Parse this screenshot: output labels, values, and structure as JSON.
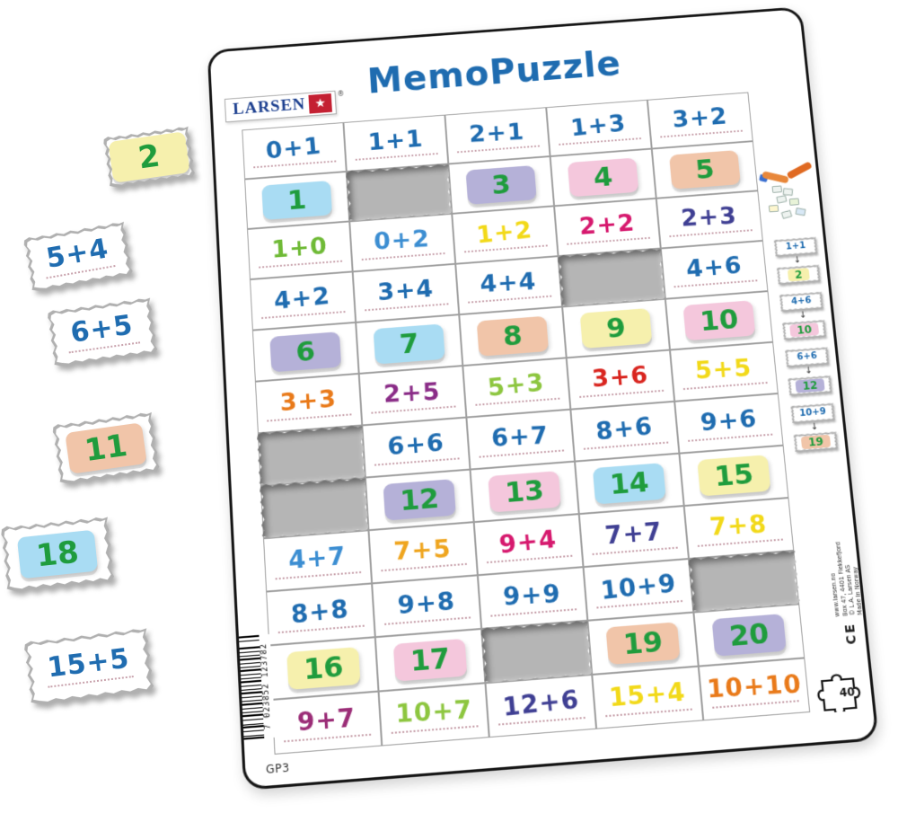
{
  "title": "MemoPuzzle",
  "brand": {
    "name": "LARSEN",
    "reg": "®"
  },
  "footer": {
    "product_code": "GP3",
    "piece_count": "40",
    "barcode_number": "7 023852 123782"
  },
  "side_text": {
    "lines": [
      "www.larsen.no",
      "Box 47, 4401 Flekkefjord",
      "© L.A. Larsen AS",
      "Made in Norway"
    ],
    "ce": "CE"
  },
  "palette": {
    "blue": "#1f6cb0",
    "blue2": "#3c8ed2",
    "green": "#6fba36",
    "lightgreen": "#8dc63f",
    "yellow": "#f2d919",
    "gold": "#efa51f",
    "crimson": "#d6196e",
    "indigo": "#3f3f93",
    "purple": "#8a2c87",
    "magenta": "#9b2d77",
    "red": "#d9251f",
    "orange": "#e97a1a",
    "ansGreen": "#1f9c3d",
    "bgBlue": "#a9dcf3",
    "bgLavender": "#b5b1d8",
    "bgPink": "#f4c7dc",
    "bgPeach": "#f1c5a9",
    "bgYellow": "#f6f0ad"
  },
  "grid": {
    "cols": 5,
    "rows": [
      [
        {
          "t": "p",
          "v": "0+1",
          "c": "blue"
        },
        {
          "t": "p",
          "v": "1+1",
          "c": "blue"
        },
        {
          "t": "p",
          "v": "2+1",
          "c": "blue"
        },
        {
          "t": "p",
          "v": "1+3",
          "c": "blue"
        },
        {
          "t": "p",
          "v": "3+2",
          "c": "blue"
        }
      ],
      [
        {
          "t": "a",
          "v": "1",
          "bg": "bgBlue"
        },
        {
          "t": "h"
        },
        {
          "t": "a",
          "v": "3",
          "bg": "bgLavender"
        },
        {
          "t": "a",
          "v": "4",
          "bg": "bgPink"
        },
        {
          "t": "a",
          "v": "5",
          "bg": "bgPeach"
        }
      ],
      [
        {
          "t": "p",
          "v": "1+0",
          "c": "green"
        },
        {
          "t": "p",
          "v": "0+2",
          "c": "blue2"
        },
        {
          "t": "p",
          "v": "1+2",
          "c": "yellow"
        },
        {
          "t": "p",
          "v": "2+2",
          "c": "crimson"
        },
        {
          "t": "p",
          "v": "2+3",
          "c": "indigo"
        }
      ],
      [
        {
          "t": "p",
          "v": "4+2",
          "c": "blue"
        },
        {
          "t": "p",
          "v": "3+4",
          "c": "blue"
        },
        {
          "t": "p",
          "v": "4+4",
          "c": "blue"
        },
        {
          "t": "h"
        },
        {
          "t": "p",
          "v": "4+6",
          "c": "blue"
        }
      ],
      [
        {
          "t": "a",
          "v": "6",
          "bg": "bgLavender"
        },
        {
          "t": "a",
          "v": "7",
          "bg": "bgBlue"
        },
        {
          "t": "a",
          "v": "8",
          "bg": "bgPeach"
        },
        {
          "t": "a",
          "v": "9",
          "bg": "bgYellow"
        },
        {
          "t": "a",
          "v": "10",
          "bg": "bgPink"
        }
      ],
      [
        {
          "t": "p",
          "v": "3+3",
          "c": "orange"
        },
        {
          "t": "p",
          "v": "2+5",
          "c": "purple"
        },
        {
          "t": "p",
          "v": "5+3",
          "c": "lightgreen"
        },
        {
          "t": "p",
          "v": "3+6",
          "c": "red"
        },
        {
          "t": "p",
          "v": "5+5",
          "c": "yellow"
        }
      ],
      [
        {
          "t": "h"
        },
        {
          "t": "p",
          "v": "6+6",
          "c": "blue"
        },
        {
          "t": "p",
          "v": "6+7",
          "c": "blue"
        },
        {
          "t": "p",
          "v": "8+6",
          "c": "blue"
        },
        {
          "t": "p",
          "v": "9+6",
          "c": "blue"
        }
      ],
      [
        {
          "t": "h"
        },
        {
          "t": "a",
          "v": "12",
          "bg": "bgLavender"
        },
        {
          "t": "a",
          "v": "13",
          "bg": "bgPink"
        },
        {
          "t": "a",
          "v": "14",
          "bg": "bgBlue"
        },
        {
          "t": "a",
          "v": "15",
          "bg": "bgYellow"
        }
      ],
      [
        {
          "t": "p",
          "v": "4+7",
          "c": "blue2"
        },
        {
          "t": "p",
          "v": "7+5",
          "c": "gold"
        },
        {
          "t": "p",
          "v": "9+4",
          "c": "crimson"
        },
        {
          "t": "p",
          "v": "7+7",
          "c": "indigo"
        },
        {
          "t": "p",
          "v": "7+8",
          "c": "yellow"
        }
      ],
      [
        {
          "t": "p",
          "v": "8+8",
          "c": "blue"
        },
        {
          "t": "p",
          "v": "9+8",
          "c": "blue"
        },
        {
          "t": "p",
          "v": "9+9",
          "c": "blue"
        },
        {
          "t": "p",
          "v": "10+9",
          "c": "blue"
        },
        {
          "t": "h"
        }
      ],
      [
        {
          "t": "a",
          "v": "16",
          "bg": "bgYellow"
        },
        {
          "t": "a",
          "v": "17",
          "bg": "bgPink"
        },
        {
          "t": "h"
        },
        {
          "t": "a",
          "v": "19",
          "bg": "bgPeach"
        },
        {
          "t": "a",
          "v": "20",
          "bg": "bgLavender"
        }
      ],
      [
        {
          "t": "p",
          "v": "9+7",
          "c": "magenta"
        },
        {
          "t": "p",
          "v": "10+7",
          "c": "lightgreen"
        },
        {
          "t": "p",
          "v": "12+6",
          "c": "indigo"
        },
        {
          "t": "p",
          "v": "15+4",
          "c": "yellow"
        },
        {
          "t": "p",
          "v": "10+10",
          "c": "orange"
        }
      ]
    ]
  },
  "examples": [
    {
      "problem": "1+1",
      "answer": "2",
      "bg": "bgYellow"
    },
    {
      "problem": "4+6",
      "answer": "10",
      "bg": "bgPink"
    },
    {
      "problem": "6+6",
      "answer": "12",
      "bg": "bgLavender"
    },
    {
      "problem": "10+9",
      "answer": "19",
      "bg": "bgPeach"
    }
  ],
  "loose_pieces": [
    {
      "type": "answer",
      "text": "2",
      "bg": "bgYellow"
    },
    {
      "type": "problem",
      "text": "5+4",
      "color": "blue"
    },
    {
      "type": "problem",
      "text": "6+5",
      "color": "blue"
    },
    {
      "type": "answer",
      "text": "11",
      "bg": "bgPeach"
    },
    {
      "type": "answer",
      "text": "18",
      "bg": "bgBlue"
    },
    {
      "type": "problem",
      "text": "15+5",
      "color": "blue"
    }
  ]
}
